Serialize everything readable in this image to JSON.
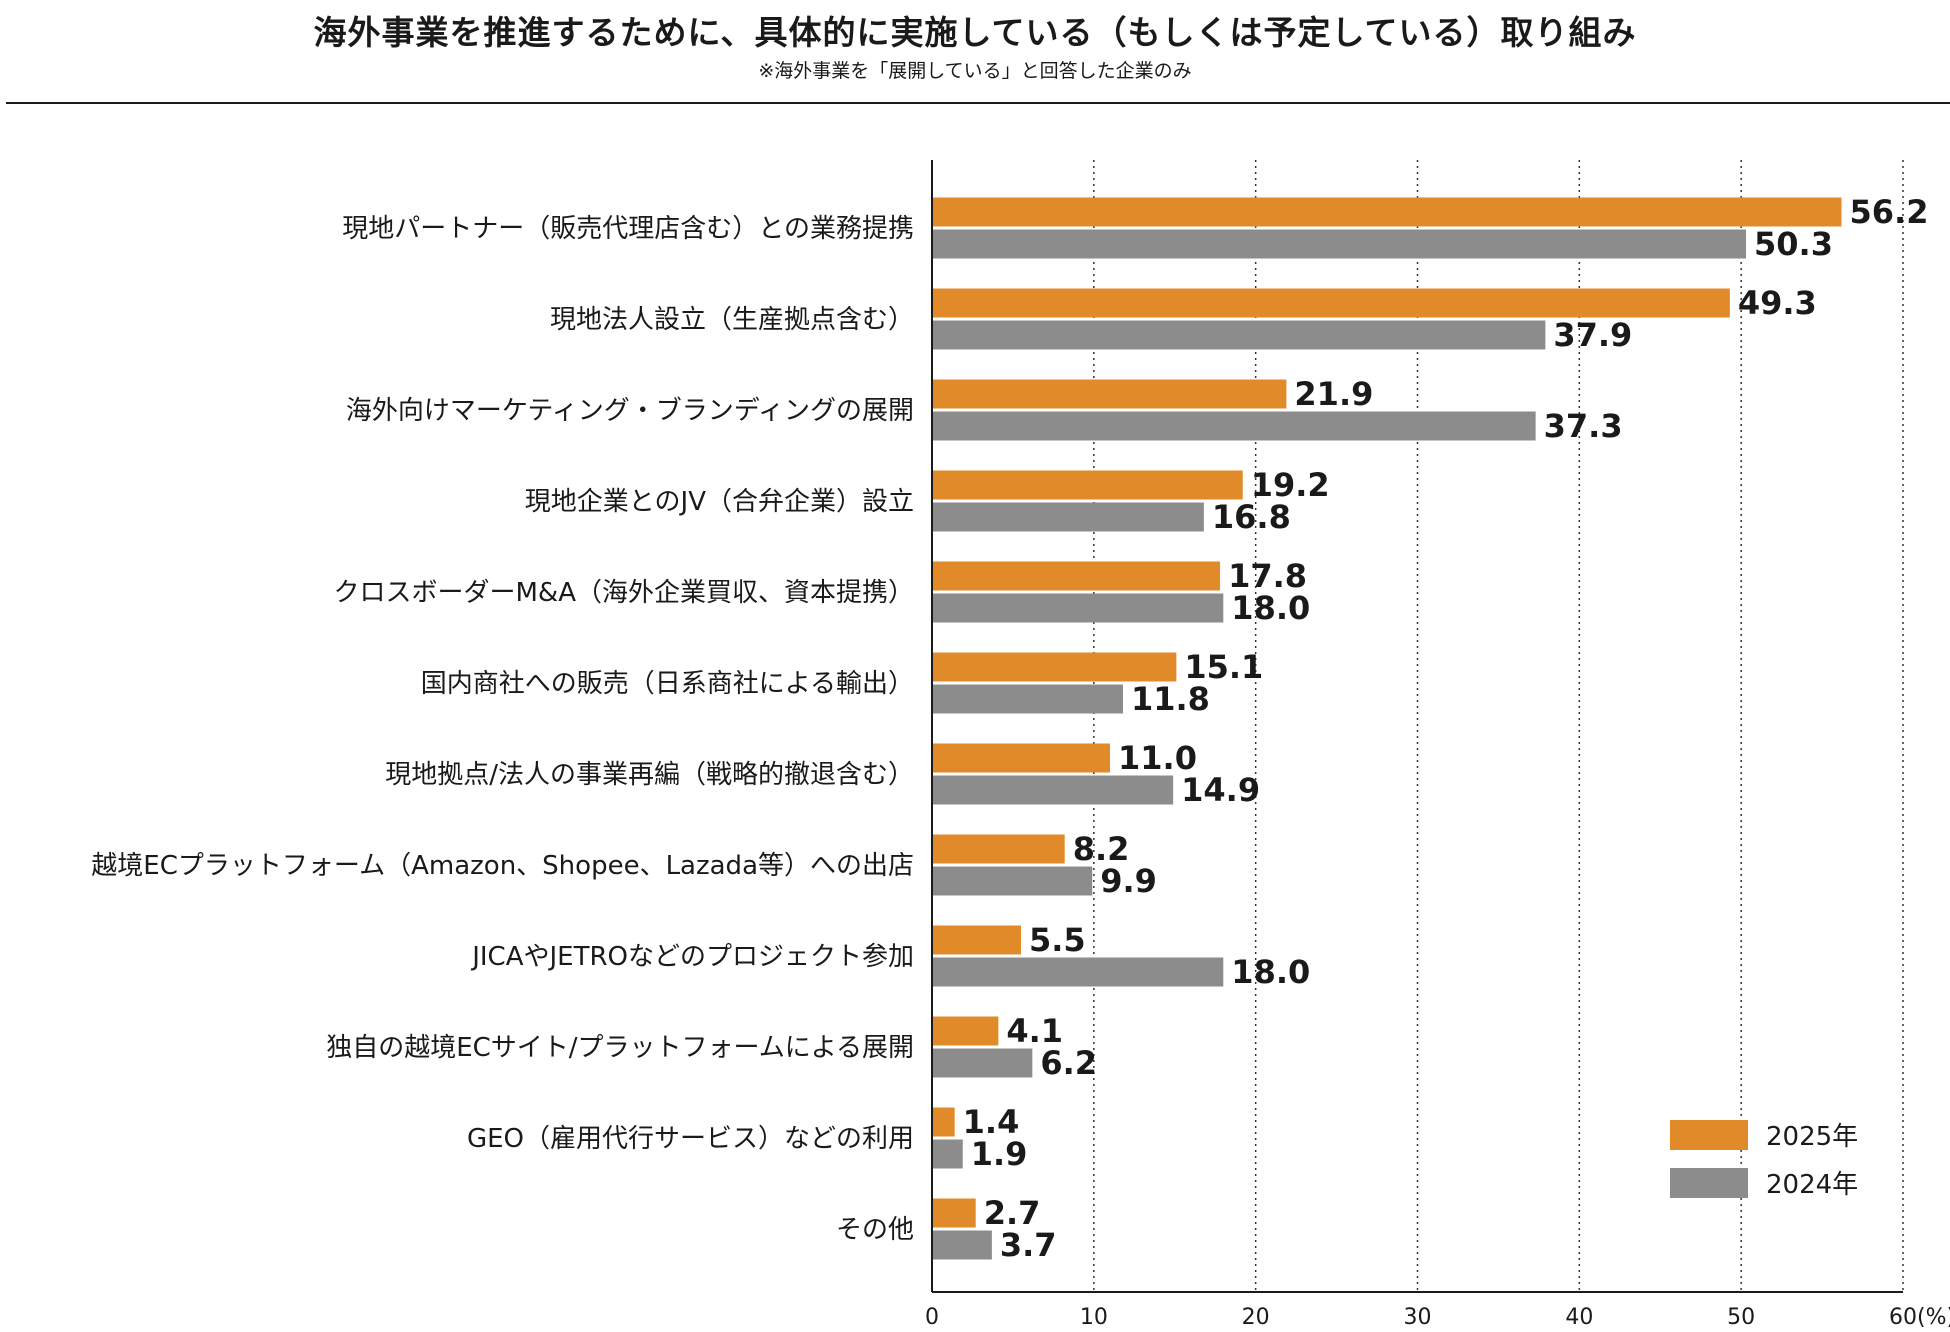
{
  "header": {
    "title": "海外事業を推進するために、具体的に実施している（もしくは予定している）取り組み",
    "subtitle": "※海外事業を「展開している」と回答した企業のみ"
  },
  "colors": {
    "series_2025": "#e08a2a",
    "series_2024": "#8c8c8c",
    "axis": "#1a1a1a",
    "grid": "#333333"
  },
  "chart_data": {
    "type": "bar",
    "orientation": "horizontal",
    "title": "海外事業を推進するために、具体的に実施している（もしくは予定している）取り組み",
    "xlabel": "",
    "ylabel": "",
    "xlim": [
      0,
      60
    ],
    "ticks": [
      0,
      10,
      20,
      30,
      40,
      50,
      60
    ],
    "tick_labels": [
      "0",
      "10",
      "20",
      "30",
      "40",
      "50",
      "60"
    ],
    "unit_label": "(%)",
    "grid": true,
    "legend_position": "bottom-right",
    "categories": [
      "現地パートナー（販売代理店含む）との業務提携",
      "現地法人設立（生産拠点含む）",
      "海外向けマーケティング・ブランディングの展開",
      "現地企業とのJV（合弁企業）設立",
      "クロスボーダーM&A（海外企業買収、資本提携）",
      "国内商社への販売（日系商社による輸出）",
      "現地拠点/法人の事業再編（戦略的撤退含む）",
      "越境ECプラットフォーム（Amazon、Shopee、Lazada等）への出店",
      "JICAやJETROなどのプロジェクト参加",
      "独自の越境ECサイト/プラットフォームによる展開",
      "GEO（雇用代行サービス）などの利用",
      "その他"
    ],
    "series": [
      {
        "name": "2025年",
        "values": [
          56.2,
          49.3,
          21.9,
          19.2,
          17.8,
          15.1,
          11.0,
          8.2,
          5.5,
          4.1,
          1.4,
          2.7
        ],
        "labels": [
          "56.2",
          "49.3",
          "21.9",
          "19.2",
          "17.8",
          "15.1",
          "11.0",
          "8.2",
          "5.5",
          "4.1",
          "1.4",
          "2.7"
        ]
      },
      {
        "name": "2024年",
        "values": [
          50.3,
          37.9,
          37.3,
          16.8,
          18.0,
          11.8,
          14.9,
          9.9,
          18.0,
          6.2,
          1.9,
          3.7
        ],
        "labels": [
          "50.3",
          "37.9",
          "37.3",
          "16.8",
          "18.0",
          "11.8",
          "14.9",
          "9.9",
          "18.0",
          "6.2",
          "1.9",
          "3.7"
        ]
      }
    ]
  }
}
